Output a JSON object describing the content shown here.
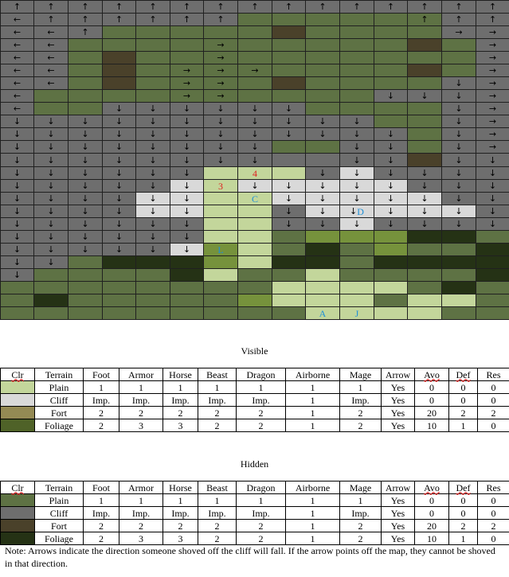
{
  "colors": {
    "gray": "#6e6e6e",
    "light_green": "#c3d69b",
    "white_cliff": "#d9d9d9",
    "olive": "#76923c",
    "mid_green": "#5e7244",
    "dark_green": "#4f6228",
    "deep_green": "#253215",
    "brown": "#4a412a",
    "border": "#202020"
  },
  "map_rows": [
    "G^ G^ G^ G^ G^ G^ G^ G^ G^ G^ G^ G^ G^ G^ G^",
    "G< G^ G^ G^ G^ G^ G^ V. V. V. V. V. V^ G^ G^",
    "G< G< G^ V. V. V. V. V. B. V. V. V. V. G> G>",
    "G< G< V. V. V. V. V> V. V. V. V. V. B. V. G>",
    "G< G< V. B. V. V. V> V. V. V. V. V. V. V. G>",
    "G< G< V. B. V. V> V> V> V. V. V. V. B. V. G>",
    "G< G< V. B. V. V> V> V. B. V. V. V. V. Gv G>",
    "G< V. V. V. V. V> V> V. V. V. V. Gv Gv Gv G>",
    "G< V. V. Gv Gv Gv Gv Gv Gv V. V. V. V. Gv G>",
    "Gv Gv Gv Gv Gv Gv Gv Gv Gv Gv Gv V. V. Gv G>",
    "Gv Gv Gv Gv Gv Gv Gv Gv Gv Gv Gv Gv V. Gv G>",
    "Gv Gv Gv Gv Gv Gv Gv Gv V. V. Gv Gv V. Gv G>",
    "Gv Gv Gv Gv Gv Gv Gv Gv G. G. Gv Gv B. Gv Gv",
    "Gv Gv Gv Gv Gv Gv L. L4 L. Gv Wv Gv Gv Gv Gv",
    "Gv Gv Gv Gv Gv Wv L3 Wv Wv Wv Wv Wv Gv Gv Gv",
    "Gv Gv Gv Gv Wv Wv L. LC Wv Wv Wv Wv Wv Gv Gv",
    "Gv Gv Gv Gv Wv Wv L. L. Gv Wv WvD Wv Wv Wv Gv",
    "Gv Gv Gv Gv Gv Gv L. L. Gv Gv Wv Gv Gv Gv Gv",
    "Gv Gv Gv Gv Gv Gv L. L. V. O. O. O. E. E. V.",
    "Gv Gv Gv Gv Gv Wv OL L. V. E. V. O. V. V. E.",
    "Gv Gv V. E. E. E. O. L. E. E. V. E. E. E. E.",
    "Gv V. V. V. V. E. L. V. V. L. V. V. V. V. E.",
    "V. V. V. V. V. V. V. V. L. L. L. L. V. E. V.",
    "V. E. V. V. V. V. V. O. L. L. L. V. L. L. V.",
    "V. V. V. V. V. V. V. V. V. LA LJ L. L. V. V."
  ],
  "map_labels": {
    "4": {
      "text": "4",
      "color": "#e02020"
    },
    "3": {
      "text": "3",
      "color": "#e02020"
    },
    "C": {
      "text": "C",
      "color": "#1e90d8"
    },
    "D": {
      "text": "D",
      "color": "#1e90d8"
    },
    "L": {
      "text": "L",
      "color": "#1e90d8"
    },
    "A": {
      "text": "A",
      "color": "#1e90d8"
    },
    "J": {
      "text": "J",
      "color": "#1e90d8"
    }
  },
  "arrows": {
    "^": "↑",
    "<": "←",
    ">": "→",
    "v": "↓"
  },
  "visible": {
    "title": "Visible",
    "headers": [
      "Clr",
      "Terrain",
      "Foot",
      "Armor",
      "Horse",
      "Beast",
      "Dragon",
      "Airborne",
      "Mage",
      "Arrow",
      "Avo",
      "Def",
      "Res"
    ],
    "rows": [
      {
        "color": "#c3d69b",
        "cells": [
          "Plain",
          "1",
          "1",
          "1",
          "1",
          "1",
          "1",
          "1",
          "Yes",
          "0",
          "0",
          "0"
        ]
      },
      {
        "color": "#d9d9d9",
        "cells": [
          "Cliff",
          "Imp.",
          "Imp.",
          "Imp.",
          "Imp.",
          "Imp.",
          "1",
          "Imp.",
          "Yes",
          "0",
          "0",
          "0"
        ]
      },
      {
        "color": "#948a54",
        "cells": [
          "Fort",
          "2",
          "2",
          "2",
          "2",
          "2",
          "1",
          "2",
          "Yes",
          "20",
          "2",
          "2"
        ]
      },
      {
        "color": "#4f6228",
        "cells": [
          "Foliage",
          "2",
          "3",
          "3",
          "2",
          "2",
          "1",
          "2",
          "Yes",
          "10",
          "1",
          "0"
        ]
      }
    ]
  },
  "hidden": {
    "title": "Hidden",
    "headers": [
      "Clr",
      "Terrain",
      "Foot",
      "Armor",
      "Horse",
      "Beast",
      "Dragon",
      "Airborne",
      "Mage",
      "Arrow",
      "Avo",
      "Def",
      "Res"
    ],
    "rows": [
      {
        "color": "#5e7244",
        "cells": [
          "Plain",
          "1",
          "1",
          "1",
          "1",
          "1",
          "1",
          "1",
          "Yes",
          "0",
          "0",
          "0"
        ]
      },
      {
        "color": "#6e6e6e",
        "cells": [
          "Cliff",
          "Imp.",
          "Imp.",
          "Imp.",
          "Imp.",
          "Imp.",
          "1",
          "Imp.",
          "Yes",
          "0",
          "0",
          "0"
        ]
      },
      {
        "color": "#4a412a",
        "cells": [
          "Fort",
          "2",
          "2",
          "2",
          "2",
          "2",
          "1",
          "2",
          "Yes",
          "20",
          "2",
          "2"
        ]
      },
      {
        "color": "#253215",
        "cells": [
          "Foliage",
          "2",
          "3",
          "3",
          "2",
          "2",
          "1",
          "2",
          "Yes",
          "10",
          "1",
          "0"
        ]
      }
    ]
  },
  "note": "Note: Arrows indicate the direction someone shoved off the cliff will fall.  If the arrow points off the map, they cannot be shoved in that direction."
}
